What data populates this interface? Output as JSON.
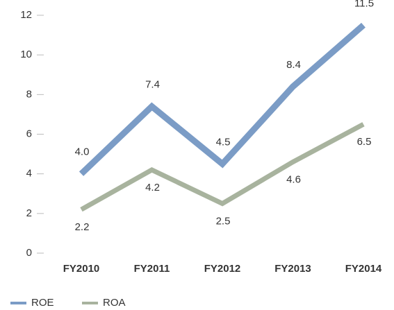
{
  "chart_data": {
    "type": "line",
    "categories": [
      "FY2010",
      "FY2011",
      "FY2012",
      "FY2013",
      "FY2014"
    ],
    "series": [
      {
        "name": "ROE",
        "color": "#7b9cc6",
        "label_color": "#52739b",
        "values": [
          4.0,
          7.4,
          4.5,
          8.4,
          11.5
        ],
        "value_labels": [
          "4.0",
          "7.4",
          "4.5",
          "8.4",
          "11.5"
        ]
      },
      {
        "name": "ROA",
        "color": "#a8b39e",
        "label_color": "#889979",
        "values": [
          2.2,
          4.2,
          2.5,
          4.6,
          6.5
        ],
        "value_labels": [
          "2.2",
          "4.2",
          "2.5",
          "4.6",
          "6.5"
        ]
      }
    ],
    "ylim": [
      0,
      12
    ],
    "yticks": [
      0,
      2,
      4,
      6,
      8,
      10,
      12
    ],
    "grid": false,
    "legend": "bottom-left"
  }
}
